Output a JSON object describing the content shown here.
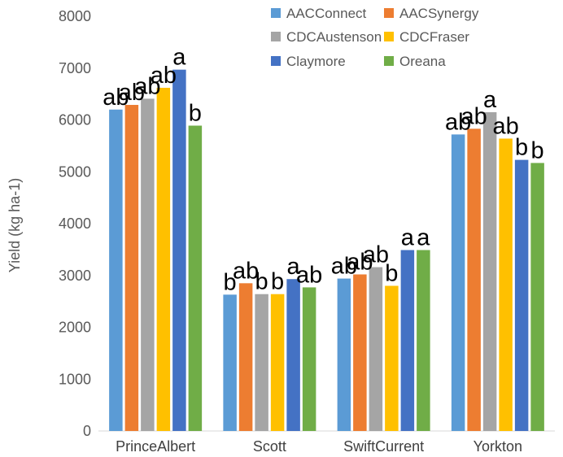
{
  "chart_data": {
    "type": "bar",
    "title": "",
    "xlabel": "",
    "ylabel": "Yield (kg ha-1)",
    "ylim": [
      0,
      8000
    ],
    "yticks": [
      0,
      1000,
      2000,
      3000,
      4000,
      5000,
      6000,
      7000,
      8000
    ],
    "grid": false,
    "legend_position": "top-right",
    "categories": [
      "PrinceAlbert",
      "Scott",
      "SwiftCurrent",
      "Yorkton"
    ],
    "series": [
      {
        "name": "AACConnect",
        "color": "#5B9BD5",
        "values": [
          6200,
          2630,
          2940,
          5720
        ],
        "labels": [
          "ab",
          "b",
          "ab",
          "ab"
        ]
      },
      {
        "name": "AACSynergy",
        "color": "#ED7D31",
        "values": [
          6290,
          2850,
          3020,
          5830
        ],
        "labels": [
          "ab",
          "ab",
          "ab",
          "ab"
        ]
      },
      {
        "name": "CDCAustenson",
        "color": "#A5A5A5",
        "values": [
          6410,
          2640,
          3160,
          6150
        ],
        "labels": [
          "ab",
          "b",
          "ab",
          "a"
        ]
      },
      {
        "name": "CDCFraser",
        "color": "#FFC000",
        "values": [
          6620,
          2640,
          2800,
          5640
        ],
        "labels": [
          "ab",
          "b",
          "b",
          "ab"
        ]
      },
      {
        "name": "Claymore",
        "color": "#4472C4",
        "values": [
          6970,
          2930,
          3490,
          5230
        ],
        "labels": [
          "a",
          "a",
          "a",
          "b"
        ]
      },
      {
        "name": "Oreana",
        "color": "#70AD47",
        "values": [
          5890,
          2770,
          3490,
          5170
        ],
        "labels": [
          "b",
          "ab",
          "a",
          "b"
        ]
      }
    ]
  }
}
